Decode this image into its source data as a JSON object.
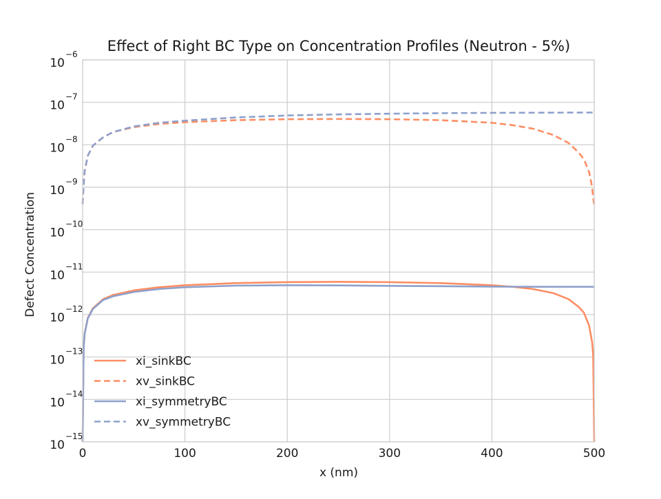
{
  "chart_data": {
    "type": "line",
    "title": "Effect of Right BC Type on Concentration Profiles (Neutron - 5%)",
    "xlabel": "x (nm)",
    "ylabel": "Defect Concentration",
    "xlim": [
      0,
      500
    ],
    "ylim": [
      1e-15,
      1e-06
    ],
    "yscale": "log",
    "grid": true,
    "legend": "lower-left",
    "x_ticks": [
      "0",
      "100",
      "200",
      "300",
      "400",
      "500"
    ],
    "x_tick_values": [
      0,
      100,
      200,
      300,
      400,
      500
    ],
    "y_tick_exponents": [
      "-15",
      "-14",
      "-13",
      "-12",
      "-11",
      "-10",
      "-9",
      "-8",
      "-7",
      "-6"
    ],
    "y_tick_base": "10",
    "colors": {
      "sink": "#fc8d62",
      "symmetry": "#8da0cb",
      "grid": "#cccccc",
      "frame": "#cccccc"
    },
    "series": [
      {
        "name": "xi_sinkBC",
        "style": "solid",
        "color": "#fc8d62",
        "x": [
          0,
          1,
          2,
          5,
          10,
          20,
          30,
          50,
          75,
          100,
          150,
          200,
          250,
          300,
          350,
          400,
          420,
          440,
          460,
          475,
          485,
          490,
          495,
          498,
          499,
          500
        ],
        "y": [
          1e-15,
          1.7e-13,
          3.6e-13,
          8.3e-13,
          1.4e-12,
          2.3e-12,
          2.9e-12,
          3.7e-12,
          4.4e-12,
          4.9e-12,
          5.5e-12,
          5.8e-12,
          5.9e-12,
          5.8e-12,
          5.5e-12,
          4.9e-12,
          4.5e-12,
          4e-12,
          3.2e-12,
          2.3e-12,
          1.5e-12,
          1.1e-12,
          5.5e-13,
          2.2e-13,
          1.1e-13,
          1e-15
        ]
      },
      {
        "name": "xv_sinkBC",
        "style": "dashed",
        "color": "#fc8d62",
        "x": [
          0,
          1,
          2,
          5,
          10,
          20,
          30,
          50,
          75,
          100,
          150,
          200,
          250,
          300,
          350,
          400,
          420,
          440,
          460,
          475,
          485,
          490,
          495,
          498,
          499,
          500
        ],
        "y": [
          4e-10,
          1.2e-09,
          2.4e-09,
          5.5e-09,
          9.5e-09,
          1.5e-08,
          2e-08,
          2.6e-08,
          3.1e-08,
          3.4e-08,
          3.8e-08,
          4e-08,
          4.05e-08,
          4e-08,
          3.8e-08,
          3.3e-08,
          2.9e-08,
          2.4e-08,
          1.7e-08,
          1.1e-08,
          6.5e-09,
          4.5e-09,
          2.3e-09,
          1e-09,
          5.5e-10,
          4e-10
        ]
      },
      {
        "name": "xi_symmetryBC",
        "style": "solid",
        "color": "#8da0cb",
        "x": [
          0,
          1,
          2,
          5,
          10,
          20,
          30,
          50,
          75,
          100,
          150,
          200,
          250,
          300,
          350,
          400,
          450,
          500
        ],
        "y": [
          1e-15,
          1.7e-13,
          3.5e-13,
          8e-13,
          1.35e-12,
          2.2e-12,
          2.7e-12,
          3.4e-12,
          4e-12,
          4.4e-12,
          4.8e-12,
          4.9e-12,
          4.85e-12,
          4.75e-12,
          4.65e-12,
          4.55e-12,
          4.5e-12,
          4.5e-12
        ]
      },
      {
        "name": "xv_symmetryBC",
        "style": "dashed",
        "color": "#8da0cb",
        "x": [
          0,
          1,
          2,
          5,
          10,
          20,
          30,
          50,
          75,
          100,
          150,
          200,
          250,
          300,
          350,
          400,
          450,
          500
        ],
        "y": [
          4e-10,
          1.2e-09,
          2.4e-09,
          5.5e-09,
          9.5e-09,
          1.5e-08,
          2e-08,
          2.7e-08,
          3.3e-08,
          3.7e-08,
          4.4e-08,
          4.9e-08,
          5.2e-08,
          5.4e-08,
          5.55e-08,
          5.65e-08,
          5.7e-08,
          5.75e-08
        ]
      }
    ]
  }
}
